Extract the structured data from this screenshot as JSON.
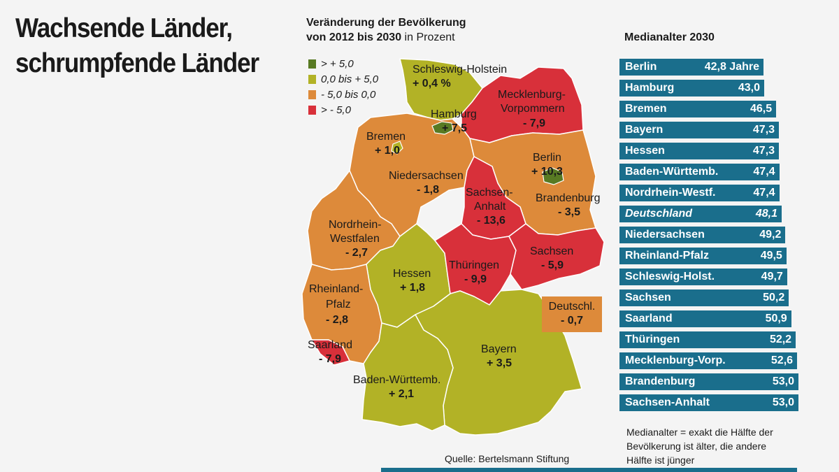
{
  "headline": {
    "line1": "Wachsende Länder,",
    "line2": "schrumpfende Länder"
  },
  "map": {
    "title_bold_line1": "Veränderung der Bevölkerung",
    "title_bold_line2": "von 2012 bis 2030",
    "title_suffix": "in Prozent",
    "legend": [
      {
        "label": "> + 5,0",
        "color": "#587a23"
      },
      {
        "label": "0,0 bis + 5,0",
        "color": "#b2b226"
      },
      {
        "label": "- 5,0 bis 0,0",
        "color": "#dd8a3a"
      },
      {
        "label": "> - 5,0",
        "color": "#d8303a"
      }
    ],
    "states": [
      {
        "name": "Schleswig-Holstein",
        "value": "+ 0,4 %",
        "color": "#b2b226"
      },
      {
        "name": "Hamburg",
        "value": "+ 7,5",
        "color": "#587a23"
      },
      {
        "name_line1": "Mecklenburg-",
        "name_line2": "Vorpommern",
        "value": "- 7,9",
        "color": "#d8303a"
      },
      {
        "name": "Bremen",
        "value": "+ 1,0",
        "color": "#b2b226"
      },
      {
        "name": "Berlin",
        "value": "+ 10,3",
        "color": "#587a23"
      },
      {
        "name": "Niedersachsen",
        "value": "- 1,8",
        "color": "#dd8a3a"
      },
      {
        "name_line1": "Sachsen-",
        "name_line2": "Anhalt",
        "value": "- 13,6",
        "color": "#d8303a"
      },
      {
        "name": "Brandenburg",
        "value": "- 3,5",
        "color": "#dd8a3a"
      },
      {
        "name_line1": "Nordrhein-",
        "name_line2": "Westfalen",
        "value": "- 2,7",
        "color": "#dd8a3a"
      },
      {
        "name": "Sachsen",
        "value": "- 5,9",
        "color": "#d8303a"
      },
      {
        "name": "Hessen",
        "value": "+ 1,8",
        "color": "#b2b226"
      },
      {
        "name": "Thüringen",
        "value": "- 9,9",
        "color": "#d8303a"
      },
      {
        "name_line1": "Rheinland-",
        "name_line2": "Pfalz",
        "value": "- 2,8",
        "color": "#dd8a3a"
      },
      {
        "name": "Saarland",
        "value": "- 7,9",
        "color": "#d8303a"
      },
      {
        "name": "Bayern",
        "value": "+ 3,5",
        "color": "#b2b226"
      },
      {
        "name": "Baden-Württemb.",
        "value": "+ 2,1",
        "color": "#b2b226"
      }
    ],
    "germany": {
      "name": "Deutschl.",
      "value": "- 0,7",
      "color": "#dd8a3a"
    },
    "source": "Quelle: Bertelsmann Stiftung"
  },
  "median_age": {
    "title": "Medianalter 2030",
    "bar_color": "#1a6e8c",
    "rows": [
      {
        "label": "Berlin",
        "value": "42,8 Jahre"
      },
      {
        "label": "Hamburg",
        "value": "43,0"
      },
      {
        "label": "Bremen",
        "value": "46,5"
      },
      {
        "label": "Bayern",
        "value": "47,3"
      },
      {
        "label": "Hessen",
        "value": "47,3"
      },
      {
        "label": "Baden-Württemb.",
        "value": "47,4"
      },
      {
        "label": "Nordrhein-Westf.",
        "value": "47,4"
      },
      {
        "label": "Deutschland",
        "value": "48,1"
      },
      {
        "label": "Niedersachsen",
        "value": "49,2"
      },
      {
        "label": "Rheinland-Pfalz",
        "value": "49,5"
      },
      {
        "label": "Schleswig-Holst.",
        "value": "49,7"
      },
      {
        "label": "Sachsen",
        "value": "50,2"
      },
      {
        "label": "Saarland",
        "value": "50,9"
      },
      {
        "label": "Thüringen",
        "value": "52,2"
      },
      {
        "label": "Mecklenburg-Vorp.",
        "value": "52,6"
      },
      {
        "label": "Brandenburg",
        "value": "53,0"
      },
      {
        "label": "Sachsen-Anhalt",
        "value": "53,0"
      }
    ],
    "note_line1": "Medianalter = exakt die Hälfte der",
    "note_line2": "Bevölkerung ist älter, die andere",
    "note_line3": "Hälfte ist jünger"
  }
}
